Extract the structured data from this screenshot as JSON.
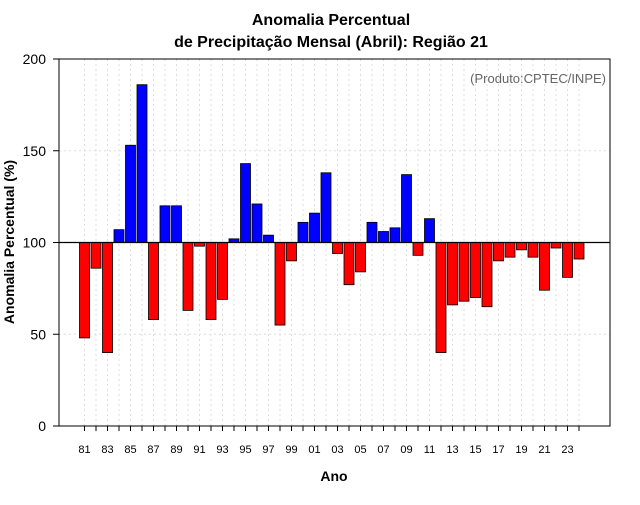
{
  "chart_data": {
    "type": "bar",
    "title_line1": "Anomalia Percentual",
    "title_line2": "de Precipitação Mensal (Abril): Região 21",
    "xlabel": "Ano",
    "ylabel": "Anomalia Percentual (%)",
    "credit": "(Produto:CPTEC/INPE)",
    "ylim": [
      0,
      200
    ],
    "yticks": [
      0,
      50,
      100,
      150,
      200
    ],
    "baseline": 100,
    "colors": {
      "above": "#0000ff",
      "below": "#ff0000",
      "baseline": "#000000"
    },
    "categories": [
      "81",
      "82",
      "83",
      "84",
      "85",
      "86",
      "87",
      "88",
      "89",
      "90",
      "91",
      "92",
      "93",
      "94",
      "95",
      "96",
      "97",
      "98",
      "99",
      "00",
      "01",
      "02",
      "03",
      "04",
      "05",
      "06",
      "07",
      "08",
      "09",
      "10",
      "11",
      "12",
      "13",
      "14",
      "15",
      "16",
      "17",
      "18",
      "19",
      "20",
      "21",
      "22",
      "23",
      "24"
    ],
    "xtick_labels": [
      "81",
      "83",
      "85",
      "87",
      "89",
      "91",
      "93",
      "95",
      "97",
      "99",
      "01",
      "03",
      "05",
      "07",
      "09",
      "11",
      "13",
      "15",
      "17",
      "19",
      "21",
      "23"
    ],
    "values": [
      48,
      86,
      40,
      107,
      153,
      186,
      58,
      120,
      120,
      63,
      98,
      58,
      69,
      102,
      143,
      121,
      104,
      55,
      90,
      111,
      116,
      138,
      94,
      77,
      84,
      111,
      106,
      108,
      137,
      93,
      113,
      40,
      66,
      68,
      70,
      65,
      90,
      92,
      96,
      92,
      74,
      97,
      81,
      91
    ]
  }
}
